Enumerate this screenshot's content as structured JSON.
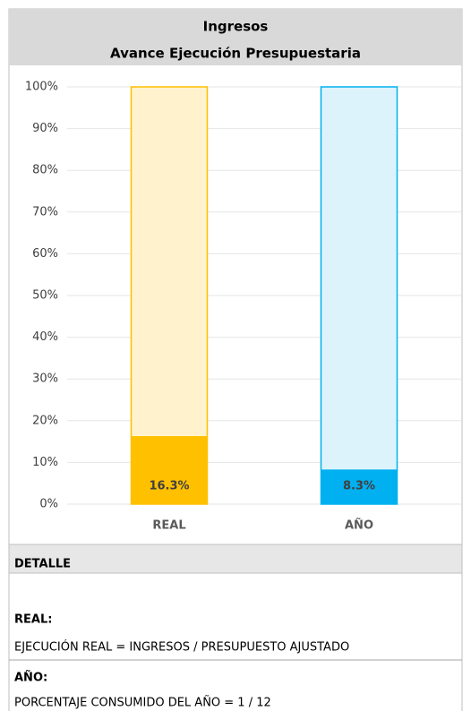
{
  "chart_data": {
    "type": "bar",
    "title": [
      "Ingresos",
      "Avance Ejecución Presupuestaria"
    ],
    "categories": [
      "REAL",
      "AÑO"
    ],
    "values": [
      16.3,
      8.3
    ],
    "value_labels": [
      "16.3%",
      "8.3%"
    ],
    "colors": [
      "#FFC000",
      "#00B0F0"
    ],
    "background_colors": [
      "#FFF2CC",
      "#DDF3FC"
    ],
    "ylim": [
      0,
      100
    ],
    "yticks": [
      {
        "value": 0,
        "label": "0%"
      },
      {
        "value": 10,
        "label": "10%"
      },
      {
        "value": 20,
        "label": "20%"
      },
      {
        "value": 30,
        "label": "30%"
      },
      {
        "value": 40,
        "label": "40%"
      },
      {
        "value": 50,
        "label": "50%"
      },
      {
        "value": 60,
        "label": "60%"
      },
      {
        "value": 70,
        "label": "70%"
      },
      {
        "value": 80,
        "label": "80%"
      },
      {
        "value": 90,
        "label": "90%"
      },
      {
        "value": 100,
        "label": "100%"
      }
    ],
    "grid": true
  },
  "detail": {
    "title": "DETALLE",
    "items": [
      {
        "label": "REAL:",
        "text": "EJECUCIÓN REAL = INGRESOS / PRESUPUESTO AJUSTADO"
      },
      {
        "label": "AÑO:",
        "text": "PORCENTAJE CONSUMIDO DEL AÑO = 1 / 12"
      }
    ]
  }
}
